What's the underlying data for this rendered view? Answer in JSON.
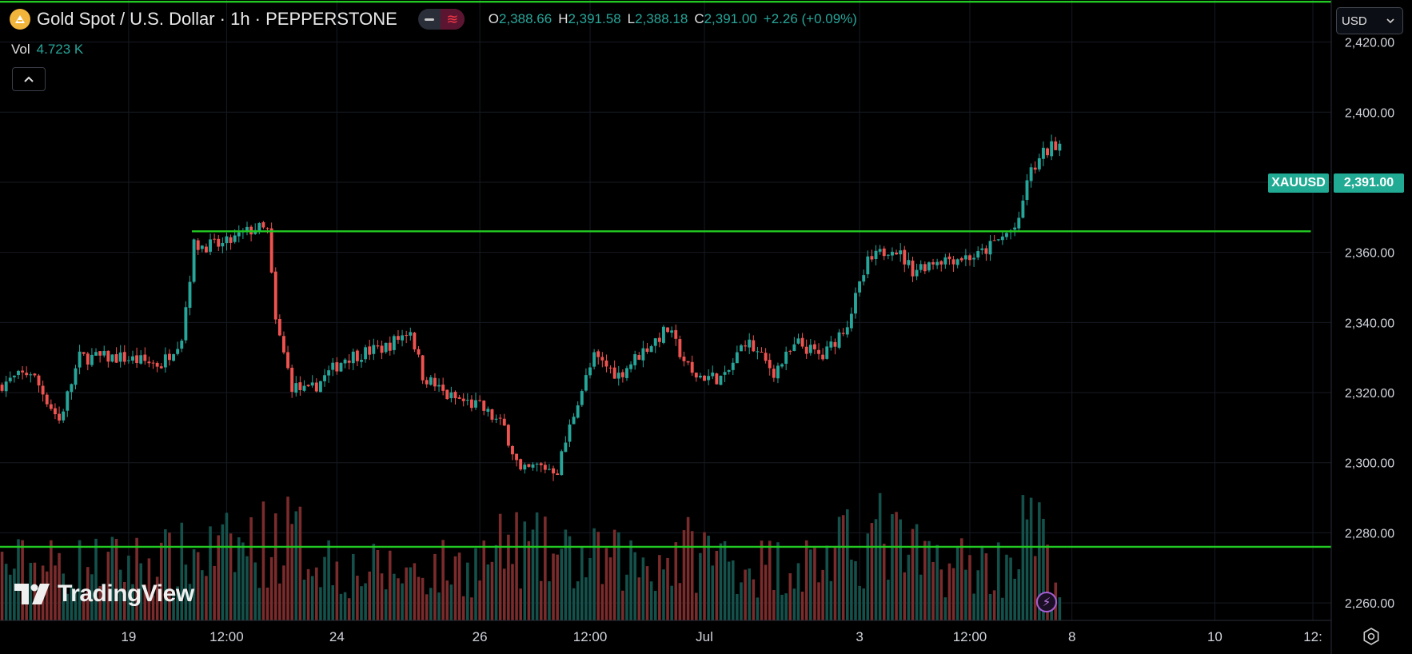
{
  "header": {
    "symbol_title": "Gold Spot / U.S. Dollar · 1h · PEPPERSTONE",
    "open_label": "O",
    "open_value": "2,388.66",
    "high_label": "H",
    "high_value": "2,391.58",
    "low_label": "L",
    "low_value": "2,388.18",
    "close_label": "C",
    "close_value": "2,391.00",
    "change": "+2.26 (+0.09%)"
  },
  "volume": {
    "label": "Vol",
    "value": "4.723 K"
  },
  "currency_selector": {
    "value": "USD"
  },
  "price_tag": {
    "symbol": "XAUUSD",
    "price": "2,391.00"
  },
  "branding": {
    "name": "TradingView"
  },
  "icons": [
    "gold-coin-icon",
    "chevron-up-icon",
    "chevron-down-icon",
    "lightning-icon",
    "settings-icon",
    "tradingview-logo-icon"
  ],
  "colors": {
    "up": "#26a69a",
    "down": "#ef5350",
    "horizontal_lines": "#22c922",
    "price_tag": "#22ab94",
    "background": "#000000"
  },
  "chart_data": {
    "type": "candlestick",
    "interval": "1h",
    "ylim": [
      2255,
      2432
    ],
    "y_ticks": [
      "2,260.00",
      "2,280.00",
      "2,300.00",
      "2,320.00",
      "2,340.00",
      "2,360.00",
      "2,380.00",
      "2,400.00",
      "2,420.00"
    ],
    "y_tick_values": [
      2260,
      2280,
      2300,
      2320,
      2340,
      2360,
      2380,
      2400,
      2420
    ],
    "x_ticks": [
      "19",
      "12:00",
      "24",
      "26",
      "12:00",
      "Jul",
      "3",
      "12:00",
      "8",
      "10",
      "12:"
    ],
    "x_tick_bars": [
      31,
      55,
      82,
      117,
      144,
      172,
      210,
      237,
      262,
      297,
      321
    ],
    "total_slots": 326,
    "last_price": 2391.0,
    "horizontal_lines": [
      {
        "price": 2431.5,
        "from_bar": 0,
        "to_bar": 325
      },
      {
        "price": 2366.0,
        "from_bar": 47,
        "to_bar": 320
      },
      {
        "price": 2276.0,
        "from_bar": 0,
        "to_bar": 325
      }
    ],
    "price_path": [
      [
        0,
        2322
      ],
      [
        8,
        2326
      ],
      [
        15,
        2312
      ],
      [
        20,
        2330
      ],
      [
        30,
        2330
      ],
      [
        40,
        2328
      ],
      [
        45,
        2336
      ],
      [
        48,
        2362
      ],
      [
        55,
        2362
      ],
      [
        63,
        2367
      ],
      [
        66,
        2366
      ],
      [
        68,
        2340
      ],
      [
        72,
        2322
      ],
      [
        76,
        2320
      ],
      [
        85,
        2330
      ],
      [
        95,
        2333
      ],
      [
        101,
        2338
      ],
      [
        104,
        2325
      ],
      [
        110,
        2319
      ],
      [
        118,
        2316
      ],
      [
        124,
        2310
      ],
      [
        128,
        2297
      ],
      [
        132,
        2299
      ],
      [
        137,
        2298
      ],
      [
        142,
        2318
      ],
      [
        146,
        2330
      ],
      [
        152,
        2325
      ],
      [
        158,
        2332
      ],
      [
        164,
        2338
      ],
      [
        170,
        2325
      ],
      [
        178,
        2324
      ],
      [
        183,
        2335
      ],
      [
        190,
        2326
      ],
      [
        196,
        2334
      ],
      [
        202,
        2330
      ],
      [
        208,
        2340
      ],
      [
        213,
        2357
      ],
      [
        219,
        2362
      ],
      [
        224,
        2355
      ],
      [
        230,
        2358
      ],
      [
        240,
        2359
      ],
      [
        250,
        2368
      ],
      [
        252,
        2381
      ],
      [
        256,
        2388
      ],
      [
        259,
        2391
      ]
    ],
    "volume_profile": [
      [
        0,
        0.55
      ],
      [
        20,
        0.55
      ],
      [
        40,
        0.6
      ],
      [
        55,
        0.7
      ],
      [
        70,
        0.85
      ],
      [
        85,
        0.5
      ],
      [
        100,
        0.5
      ],
      [
        115,
        0.55
      ],
      [
        125,
        0.75
      ],
      [
        140,
        0.6
      ],
      [
        160,
        0.6
      ],
      [
        170,
        0.7
      ],
      [
        185,
        0.55
      ],
      [
        200,
        0.6
      ],
      [
        215,
        0.85
      ],
      [
        225,
        0.6
      ],
      [
        245,
        0.55
      ],
      [
        252,
        1.0
      ],
      [
        259,
        0.35
      ]
    ],
    "series": [
      {
        "name": "XAUUSD"
      }
    ]
  }
}
